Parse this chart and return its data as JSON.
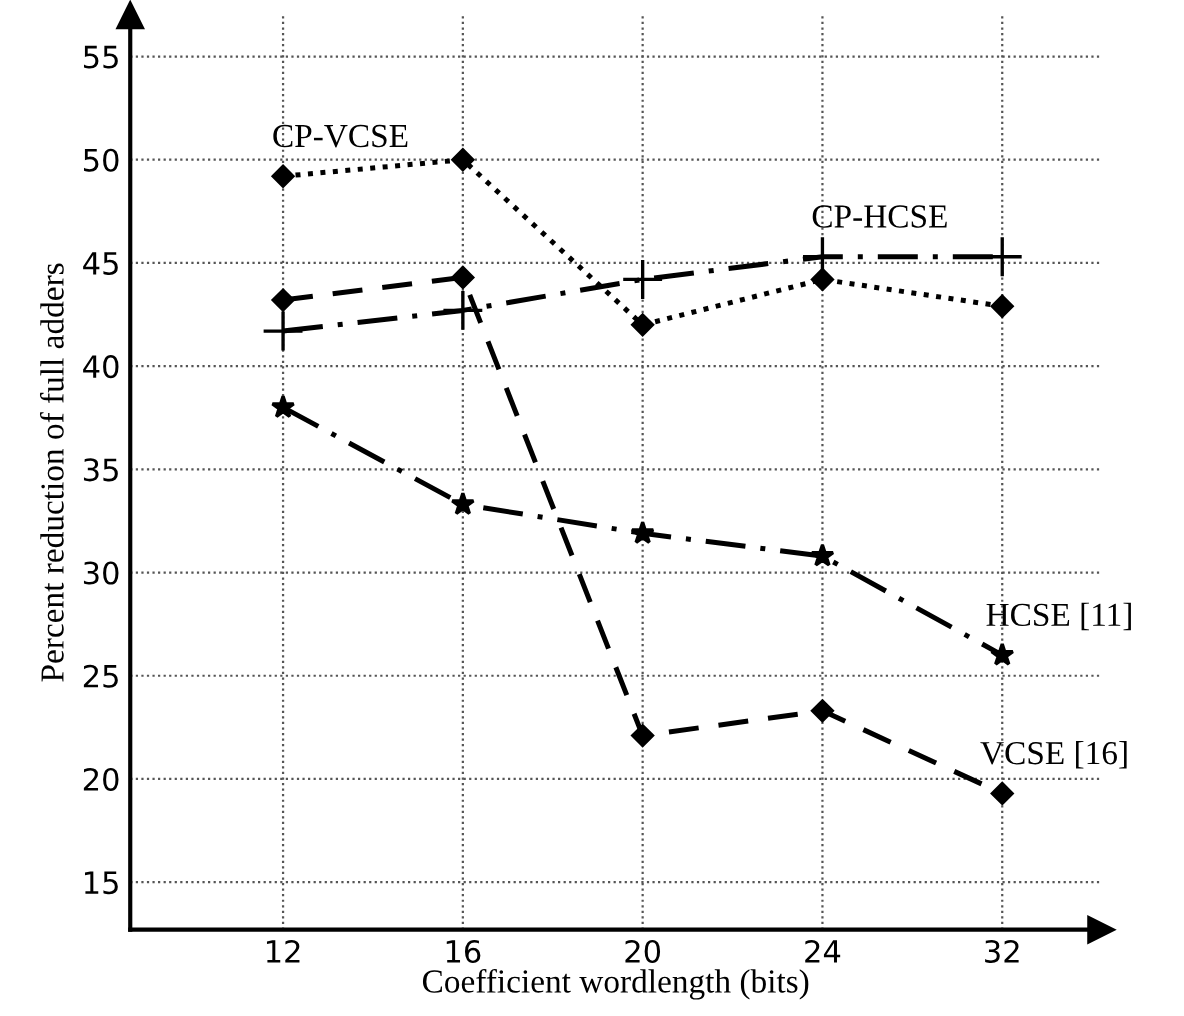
{
  "chart_data": {
    "type": "line",
    "xlabel": "Coefficient wordlength (bits)",
    "ylabel": "Percent reduction of full adders",
    "categories": [
      "12",
      "16",
      "20",
      "24",
      "32"
    ],
    "series": [
      {
        "name": "CP-VCSE",
        "color": "#000000",
        "marker": "diamond",
        "line_style": "dotted",
        "values": [
          49.2,
          50.0,
          42.0,
          44.2,
          42.9
        ]
      },
      {
        "name": "VCSE [16]",
        "color": "#000000",
        "marker": "diamond",
        "line_style": "dashed",
        "values": [
          43.2,
          44.3,
          22.1,
          23.3,
          19.3
        ]
      },
      {
        "name": "CP-HCSE",
        "color": "#000000",
        "marker": "cross",
        "line_style": "dashdot",
        "values": [
          41.7,
          42.7,
          44.2,
          45.3,
          45.3
        ]
      },
      {
        "name": "HCSE [11]",
        "color": "#000000",
        "marker": "star",
        "line_style": "dashdot",
        "values": [
          38.0,
          33.3,
          31.9,
          30.8,
          26.0
        ]
      }
    ],
    "ylim": [
      12.7,
      57
    ],
    "yticks": [
      15,
      20,
      25,
      30,
      35,
      40,
      45,
      50,
      55
    ],
    "grid": true,
    "legend": false
  }
}
